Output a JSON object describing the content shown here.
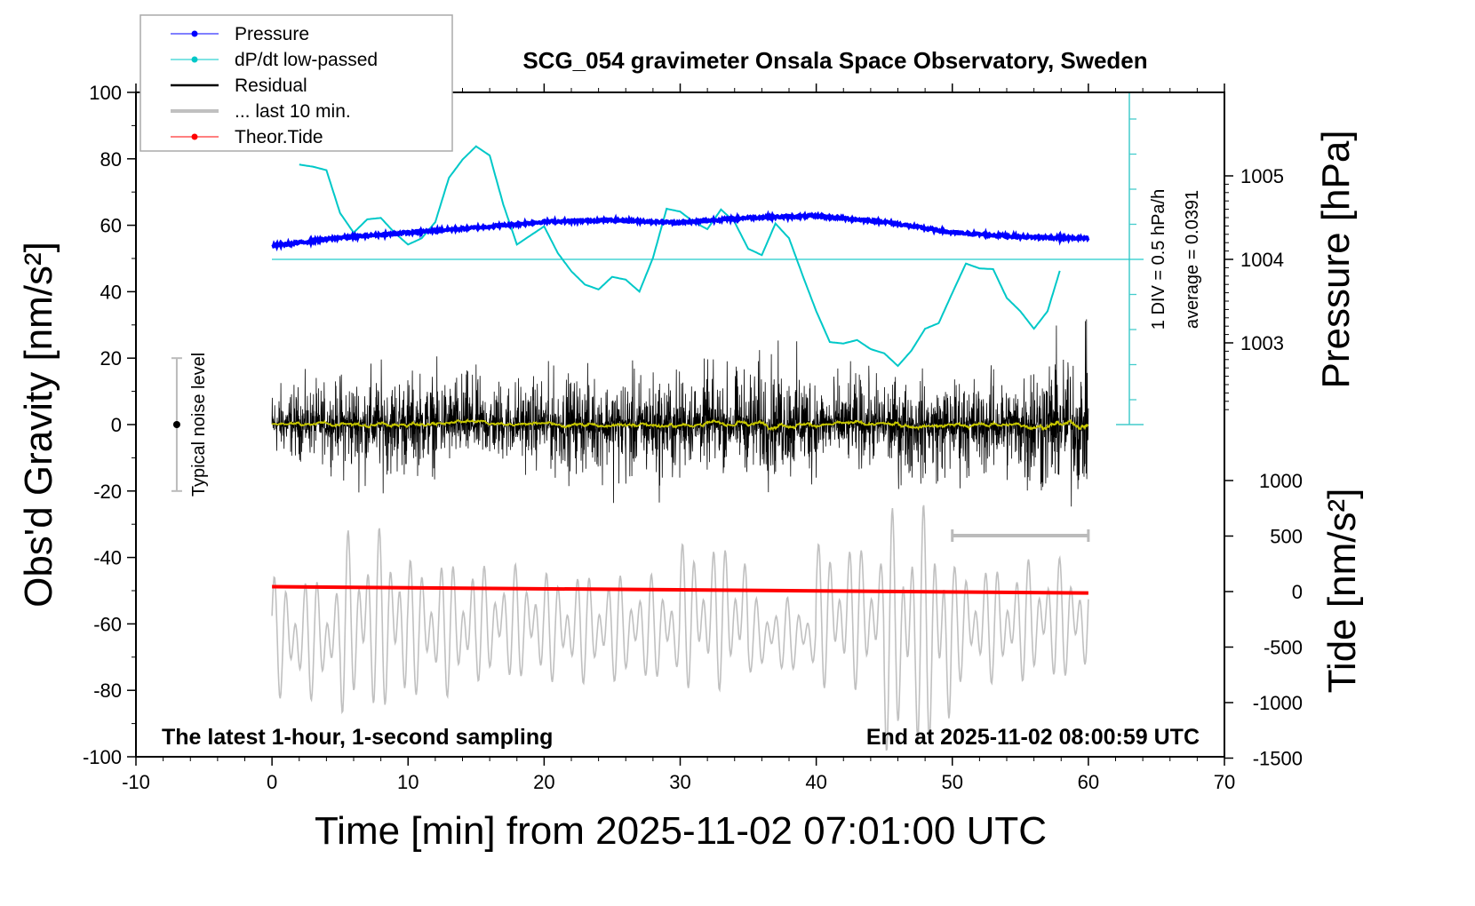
{
  "chart_data": {
    "type": "line",
    "title": "SCG_054 gravimeter Onsala Space Observatory, Sweden",
    "xlabel": "Time [min] from 2025-11-02 07:01:00 UTC",
    "ylabel": "Obs'd Gravity [nm/s²]",
    "ylabel_right_top": "Pressure [hPa]",
    "ylabel_right_bottom": "Tide [nm/s²]",
    "xlim": [
      -10,
      70
    ],
    "ylim": [
      -100,
      100
    ],
    "xticks": [
      "-10",
      "0",
      "10",
      "20",
      "30",
      "40",
      "50",
      "60",
      "70"
    ],
    "yticks": [
      "100",
      "80",
      "60",
      "40",
      "20",
      "0",
      "-20",
      "-40",
      "-60",
      "-80",
      "-100"
    ],
    "pressure_ticks": [
      "1005",
      "1004",
      "1003"
    ],
    "tide_ticks": [
      "1000",
      "500",
      "0",
      "-500",
      "-1000",
      "-1500"
    ],
    "annotations": {
      "bottom_left": "The latest 1-hour, 1-second sampling",
      "bottom_right": "End at 2025-11-02 08:00:59 UTC",
      "div_label": "1 DIV = 0.5 hPa/h",
      "average_label": "average = 0.0391",
      "noise_label": "Typical noise level"
    },
    "legend": {
      "placement": "top-left",
      "entries": [
        "Pressure",
        "dP/dt low-passed",
        "Residual",
        "... last 10 min.",
        "Theor.Tide"
      ]
    },
    "colors": {
      "pressure": "#0000ff",
      "dpdt": "#00c8c8",
      "residual": "#000000",
      "smoothed": "#c8c800",
      "last10": "#c0c0c0",
      "tide": "#ff0000"
    },
    "series": [
      {
        "name": "Pressure",
        "axis": "pressure_hPa",
        "x": [
          0,
          5,
          10,
          15,
          20,
          25,
          30,
          35,
          40,
          45,
          50,
          55,
          60
        ],
        "y": [
          1004.16,
          1004.26,
          1004.32,
          1004.38,
          1004.45,
          1004.47,
          1004.44,
          1004.5,
          1004.52,
          1004.45,
          1004.32,
          1004.27,
          1004.25
        ]
      },
      {
        "name": "dP/dt low-passed",
        "axis": "dpdt_hPa_per_h",
        "x": [
          2,
          3,
          4,
          5,
          6,
          7,
          8,
          9,
          10,
          11,
          12,
          13,
          14,
          15,
          16,
          17,
          18,
          19,
          20,
          21,
          22,
          23,
          24,
          25,
          26,
          27,
          28,
          29,
          30,
          31,
          32,
          33,
          34,
          35,
          36,
          37,
          38,
          39,
          40,
          41,
          42,
          43,
          44,
          45,
          46,
          47,
          48,
          49,
          50,
          51,
          52,
          53,
          54,
          55,
          56,
          57,
          58
        ],
        "y": [
          1.39,
          1.36,
          1.31,
          0.7,
          0.42,
          0.61,
          0.63,
          0.42,
          0.25,
          0.34,
          0.57,
          1.2,
          1.46,
          1.65,
          1.52,
          0.82,
          0.25,
          0.38,
          0.51,
          0.13,
          -0.13,
          -0.32,
          -0.39,
          -0.21,
          -0.25,
          -0.42,
          0.06,
          0.76,
          0.72,
          0.57,
          0.47,
          0.75,
          0.57,
          0.19,
          0.1,
          0.55,
          0.34,
          -0.19,
          -0.7,
          -1.14,
          -1.16,
          -1.11,
          -1.24,
          -1.3,
          -1.48,
          -1.26,
          -0.95,
          -0.87,
          -0.44,
          -0.02,
          -0.09,
          -0.1,
          -0.51,
          -0.7,
          -0.95,
          -0.7,
          -0.06
        ]
      },
      {
        "name": "Residual",
        "axis": "gravity",
        "x_segments": [
          0,
          5,
          10,
          15,
          20,
          25,
          30,
          35,
          40,
          45,
          50,
          55,
          60
        ],
        "range": [
          [
            -17,
            20
          ],
          [
            -26,
            27
          ],
          [
            -22,
            26
          ],
          [
            -20,
            24
          ],
          [
            -24,
            25
          ],
          [
            -31,
            26
          ],
          [
            -22,
            28
          ],
          [
            -29,
            33
          ],
          [
            -22,
            24
          ],
          [
            -28,
            23
          ],
          [
            -27,
            25
          ],
          [
            -38,
            39
          ]
        ]
      },
      {
        "name": "... last 10 min.",
        "axis": "gravity",
        "x_segments": [
          0,
          5,
          10,
          15,
          20,
          25,
          30,
          35,
          40,
          45,
          50,
          55,
          60
        ],
        "range": [
          [
            -83,
            -45
          ],
          [
            -88,
            -31
          ],
          [
            -82,
            -40
          ],
          [
            -78,
            -42
          ],
          [
            -78,
            -44
          ],
          [
            -78,
            -45
          ],
          [
            -80,
            -35
          ],
          [
            -75,
            -52
          ],
          [
            -80,
            -35
          ],
          [
            -100,
            -24
          ],
          [
            -78,
            -42
          ],
          [
            -78,
            -40
          ]
        ]
      },
      {
        "name": "Theor.Tide",
        "axis": "gravity",
        "x": [
          0,
          60
        ],
        "y": [
          -48.8,
          -50.7
        ]
      }
    ],
    "last10_span_min": [
      50,
      60
    ],
    "noise_level": {
      "x": -7,
      "y": [
        -20,
        20
      ]
    },
    "dpdt_average": 0.0391,
    "dpdt_div": 0.5
  }
}
